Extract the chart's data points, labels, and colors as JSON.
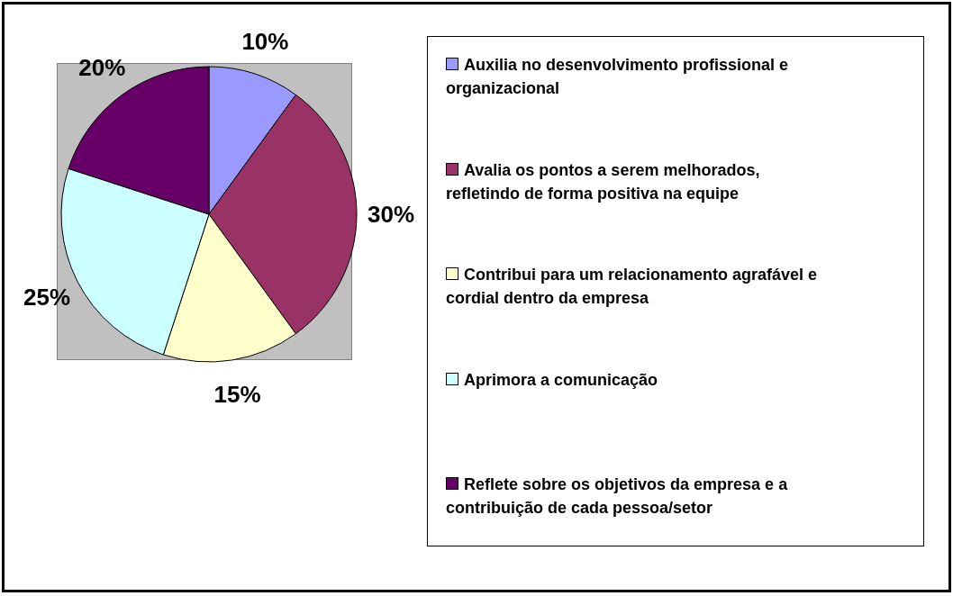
{
  "chart_data": {
    "type": "pie",
    "categories": [
      "Auxilia no desenvolvimento profissional e organizacional",
      "Avalia os pontos a serem melhorados, refletindo de forma positiva na equipe",
      "Contribui para um relacionamento agrafável e cordial dentro da empresa",
      "Aprimora a comunicação",
      "Reflete sobre os objetivos da empresa e a contribuição de cada pessoa/setor"
    ],
    "values": [
      10,
      30,
      15,
      25,
      20
    ],
    "value_labels": [
      "10%",
      "30%",
      "15%",
      "25%",
      "20%"
    ],
    "colors": [
      "#9999ff",
      "#993366",
      "#ffffcc",
      "#ccffff",
      "#660066"
    ],
    "legend": "right"
  }
}
